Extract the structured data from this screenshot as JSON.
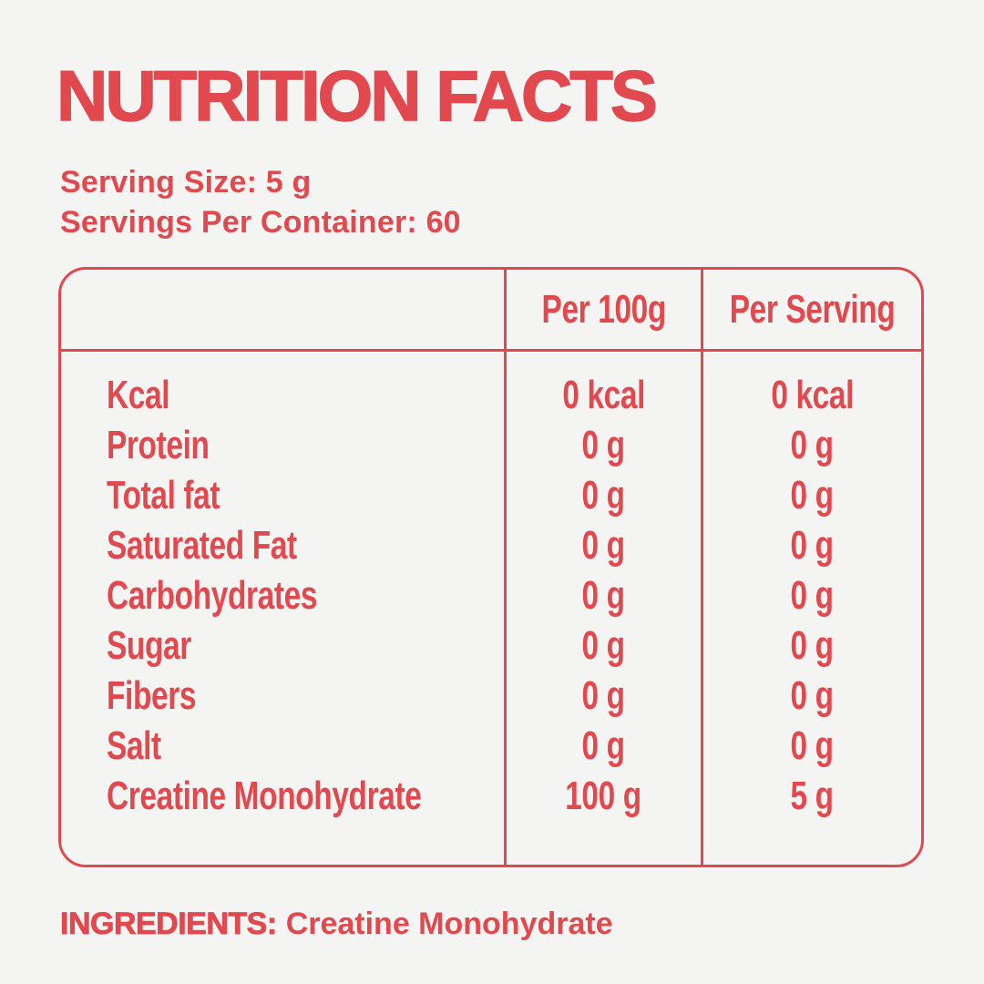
{
  "colors": {
    "accent": "#E1494F",
    "background": "#F4F4F2"
  },
  "header": {
    "title": "NUTRITION FACTS",
    "serving_size": "Serving Size: 5 g",
    "servings_per_container": "Servings Per Container: 60"
  },
  "table": {
    "columns": [
      "",
      "Per 100g",
      "Per Serving"
    ],
    "rows": [
      {
        "label": "Kcal",
        "per_100g": "0 kcal",
        "per_serving": "0 kcal"
      },
      {
        "label": "Protein",
        "per_100g": "0 g",
        "per_serving": "0 g"
      },
      {
        "label": "Total fat",
        "per_100g": "0 g",
        "per_serving": "0 g"
      },
      {
        "label": "Saturated Fat",
        "per_100g": "0 g",
        "per_serving": "0 g"
      },
      {
        "label": "Carbohydrates",
        "per_100g": "0 g",
        "per_serving": "0 g"
      },
      {
        "label": "Sugar",
        "per_100g": "0 g",
        "per_serving": "0 g"
      },
      {
        "label": "Fibers",
        "per_100g": "0 g",
        "per_serving": "0 g"
      },
      {
        "label": "Salt",
        "per_100g": "0 g",
        "per_serving": "0 g"
      },
      {
        "label": "Creatine Monohydrate",
        "per_100g": "100 g",
        "per_serving": "5 g"
      }
    ]
  },
  "ingredients": {
    "label": "INGREDIENTS:",
    "value": "Creatine Monohydrate"
  }
}
